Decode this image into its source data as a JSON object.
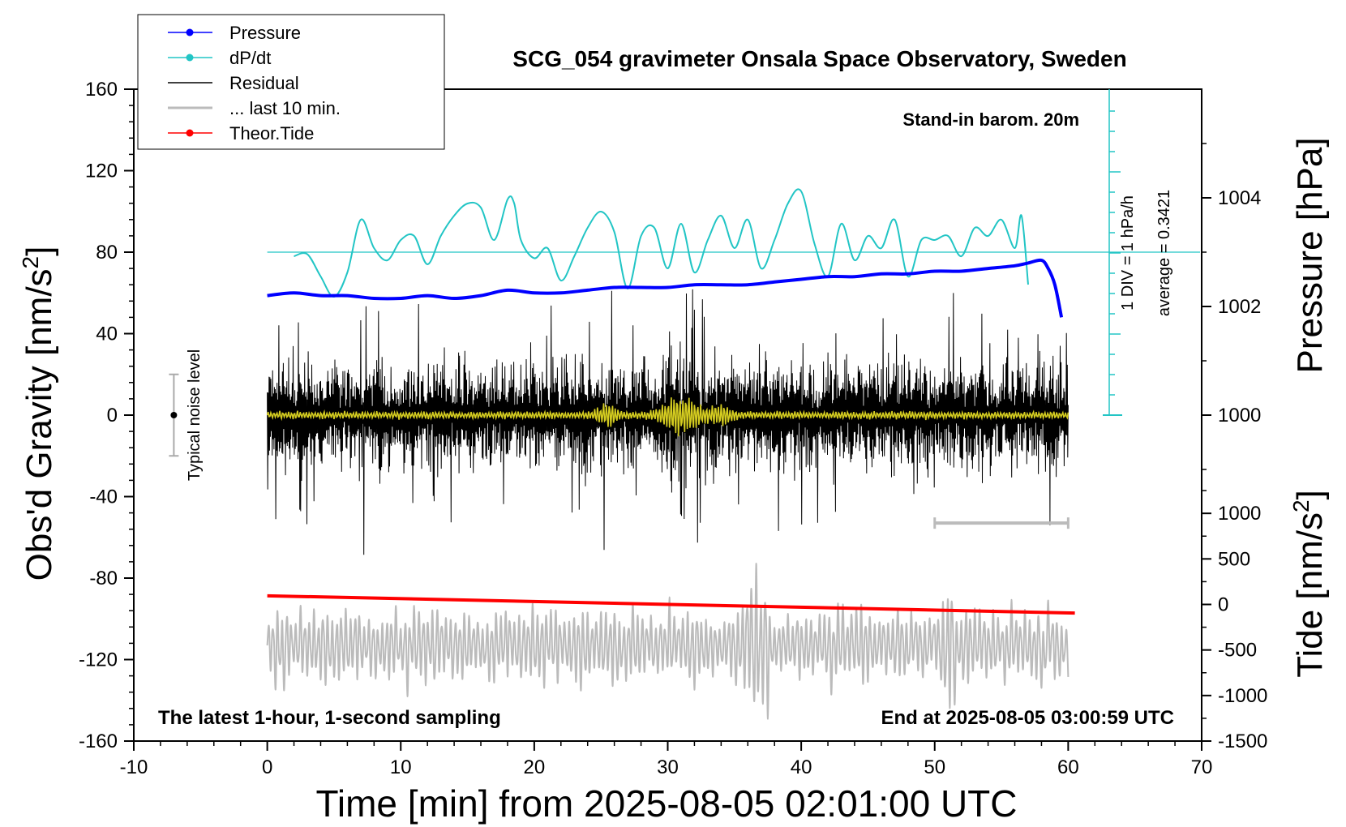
{
  "chart_data": {
    "type": "line",
    "title": "SCG_054 gravimeter Onsala Space Observatory, Sweden",
    "xlabel": "Time [min] from 2025-08-05 02:01:00 UTC",
    "ylabel_left": "Obs'd Gravity [nm/s",
    "ylabel_left_sup": "2",
    "ylabel_left_close": "]",
    "ylabel_right_top": "Pressure [hPa]",
    "ylabel_right_bottom": "Tide [nm/s",
    "ylabel_right_bottom_sup": "2",
    "ylabel_right_bottom_close": "]",
    "xlim": [
      -10,
      70
    ],
    "ylim": [
      -160,
      160
    ],
    "pressure_lim": [
      994,
      1006
    ],
    "tide_lim": [
      -1500,
      1500
    ],
    "x_ticks": [
      "-10",
      "0",
      "10",
      "20",
      "30",
      "40",
      "50",
      "60",
      "70"
    ],
    "y_ticks": [
      "160",
      "120",
      "80",
      "40",
      "0",
      "-40",
      "-80",
      "-120",
      "-160"
    ],
    "pressure_ticks": [
      "1004",
      "1002",
      "1000"
    ],
    "tide_ticks": [
      "1000",
      "500",
      "0",
      "-500",
      "-1000",
      "-1500"
    ],
    "annotations": {
      "barometer": "Stand-in barom. 20m",
      "latest": "The latest 1-hour, 1-second sampling",
      "end": "End at 2025-08-05 03:00:59 UTC",
      "noise": "Typical noise level",
      "div": "1 DIV = 1 hPa/h",
      "average": "average = 0.3421"
    },
    "legend": [
      {
        "label": "Pressure",
        "color": "#0000ff",
        "marker": true
      },
      {
        "label": "dP/dt",
        "color": "#22c5c5",
        "marker": true
      },
      {
        "label": "Residual",
        "color": "#000000",
        "marker": false
      },
      {
        "label": "... last 10 min.",
        "color": "#bbbbbb",
        "marker": false
      },
      {
        "label": "Theor.Tide",
        "color": "#ff0000",
        "marker": true
      }
    ],
    "colors": {
      "pressure": "#0000ff",
      "dpdt": "#22c5c5",
      "residual": "#000000",
      "smooth": "#d4cc20",
      "last10": "#bbbbbb",
      "tide": "#ff0000"
    },
    "series": [
      {
        "name": "Pressure",
        "axis": "pressure_hPa",
        "x": [
          0,
          2,
          4,
          6,
          8,
          10,
          12,
          14,
          16,
          18,
          20,
          22,
          24,
          26,
          28,
          30,
          32,
          34,
          36,
          38,
          40,
          42,
          44,
          46,
          48,
          50,
          52,
          54,
          56,
          57,
          58,
          58.5,
          59,
          59.5
        ],
        "y": [
          1002.2,
          1002.25,
          1002.2,
          1002.2,
          1002.15,
          1002.15,
          1002.2,
          1002.15,
          1002.2,
          1002.3,
          1002.25,
          1002.25,
          1002.3,
          1002.35,
          1002.35,
          1002.35,
          1002.4,
          1002.4,
          1002.4,
          1002.45,
          1002.5,
          1002.55,
          1002.55,
          1002.6,
          1002.6,
          1002.65,
          1002.65,
          1002.7,
          1002.75,
          1002.8,
          1002.85,
          1002.7,
          1002.4,
          1001.8
        ]
      },
      {
        "name": "dP/dt",
        "axis": "pressure_div",
        "x": [
          2,
          3,
          4,
          5,
          6,
          7,
          8,
          9,
          10,
          11,
          12,
          13,
          14,
          15,
          16,
          17,
          18,
          18.5,
          19,
          20,
          21,
          22,
          23,
          24,
          25,
          26,
          27,
          28,
          29,
          30,
          31,
          32,
          33,
          34,
          35,
          36,
          37,
          38,
          39,
          40,
          41,
          42,
          43,
          44,
          45,
          46,
          47,
          48,
          49,
          50,
          51,
          52,
          53,
          54,
          55,
          56,
          56.5,
          57
        ],
        "y": [
          -0.2,
          -0.1,
          -1.2,
          -2.2,
          -1,
          1.6,
          0.2,
          -0.4,
          0.6,
          0.8,
          -0.6,
          0.8,
          1.8,
          2.4,
          2.2,
          0.6,
          2.6,
          2.4,
          0.6,
          -0.3,
          0.2,
          -1.4,
          -0.2,
          1.2,
          2.0,
          1.0,
          -1.8,
          0.8,
          1.2,
          -0.8,
          1.4,
          -1.0,
          0.6,
          1.8,
          0.2,
          1.6,
          -0.8,
          0.6,
          2.4,
          3.0,
          0.4,
          -1.2,
          1.4,
          -0.4,
          0.8,
          0.2,
          1.6,
          -1.2,
          0.6,
          0.6,
          0.8,
          -0.2,
          1.2,
          0.8,
          1.6,
          0.2,
          1.8,
          -1.6
        ]
      },
      {
        "name": "Residual",
        "axis": "gravity",
        "x_range": [
          0,
          60
        ],
        "typical_amplitude": 25,
        "peak_amplitude": 70,
        "x_peak": [
          30,
          33
        ]
      },
      {
        "name": "... last 10 min.",
        "axis": "tide_plot",
        "x_range": [
          0,
          60
        ],
        "typical_range": [
          -1100,
          200
        ],
        "x_peak": [
          36,
          37,
          51
        ]
      },
      {
        "name": "Theor.Tide",
        "axis": "tide",
        "x": [
          0,
          60.5
        ],
        "y": [
          95,
          -95
        ]
      }
    ],
    "noise_bar": {
      "x": -7,
      "center": 0,
      "half_range": 20
    },
    "last10_bar": {
      "x_start": 50,
      "x_end": 60,
      "y": -53
    }
  }
}
